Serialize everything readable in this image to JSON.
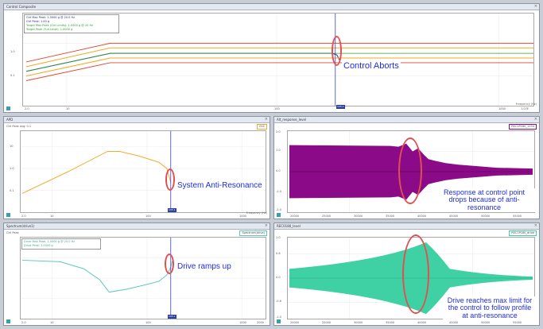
{
  "colors": {
    "marker": "#3344cc",
    "annotation": "#1f2de0",
    "ring": "#e05050",
    "trace_orange": "#f0ac30",
    "trace_purple": "#8b0a87",
    "trace_teal": "#3fd1a3",
    "trace_teal_line": "#5cc9bb"
  },
  "panels": {
    "control": {
      "title": "Control Composite",
      "legend": [
        "Ctrl Max Peak: 1.0000 g @ 20.0 Hz",
        "Ctrl Peak: 1.00 g",
        "Target Max Peak (Ctrl Limits): 1.0000 g @ 20 Hz",
        "Target Peak (Full Level): 1.0000 g"
      ],
      "y_ticks": [
        "1.0",
        "0.1"
      ],
      "x_ticks": [
        "2.0",
        "10",
        "100",
        "1000",
        "1.07E"
      ],
      "x_label": "Frequency (Hz)",
      "marker_badge": "105.1",
      "annotation": "Control Aborts"
    },
    "apd": {
      "title": "APD",
      "sub": "Ctrl Peak Avg: 0.1",
      "legend": "Ctl1",
      "y_ticks": [
        "10",
        "1.0",
        "0.1"
      ],
      "x_ticks": [
        "2.0",
        "10",
        "100",
        "1000"
      ],
      "x_label": "Frequency (Hz)",
      "marker_badge": "105.1",
      "annotation": "System Anti-Resonance"
    },
    "response": {
      "title": "Alt_response_level",
      "legend": "REC1P180_1234",
      "y_ticks": [
        "2.0",
        "1.5",
        "1.0",
        "0.5",
        "0.0",
        "-0.5",
        "-1.0",
        "-1.5",
        "-2.0"
      ],
      "x_ticks": [
        "20000",
        "25000",
        "30000",
        "35000",
        "40000",
        "45000",
        "50000",
        "55000"
      ],
      "annotation": "Response at control point drops because of anti-resonance"
    },
    "drive": {
      "title": "Spectrum(drive1)",
      "sub": "Ctrl Peak",
      "legend": "Spectrum(drive)",
      "legend_lines": [
        "Drive Max Peak: 1.0000 g @ 20.0 Hz",
        "Drive Peak: 1.0000 g"
      ],
      "x_ticks": [
        "2.0",
        "10",
        "100",
        "1000",
        "2000"
      ],
      "marker_badge": "105.1",
      "annotation": "Drive ramps up"
    },
    "drive_level": {
      "title": "REC0180_level",
      "legend": "REC1P180_drive",
      "y_ticks": [
        "1.0",
        "0.8",
        "0.6",
        "0.4",
        "0.2",
        "0.0",
        "-0.2",
        "-0.4",
        "-0.6",
        "-0.8",
        "-1.0"
      ],
      "x_ticks": [
        "20000",
        "25000",
        "30000",
        "35000",
        "40000",
        "45000",
        "50000",
        "55000"
      ],
      "annotation": "Drive reaches max limit for the control to follow profile at anti-resonance"
    }
  }
}
